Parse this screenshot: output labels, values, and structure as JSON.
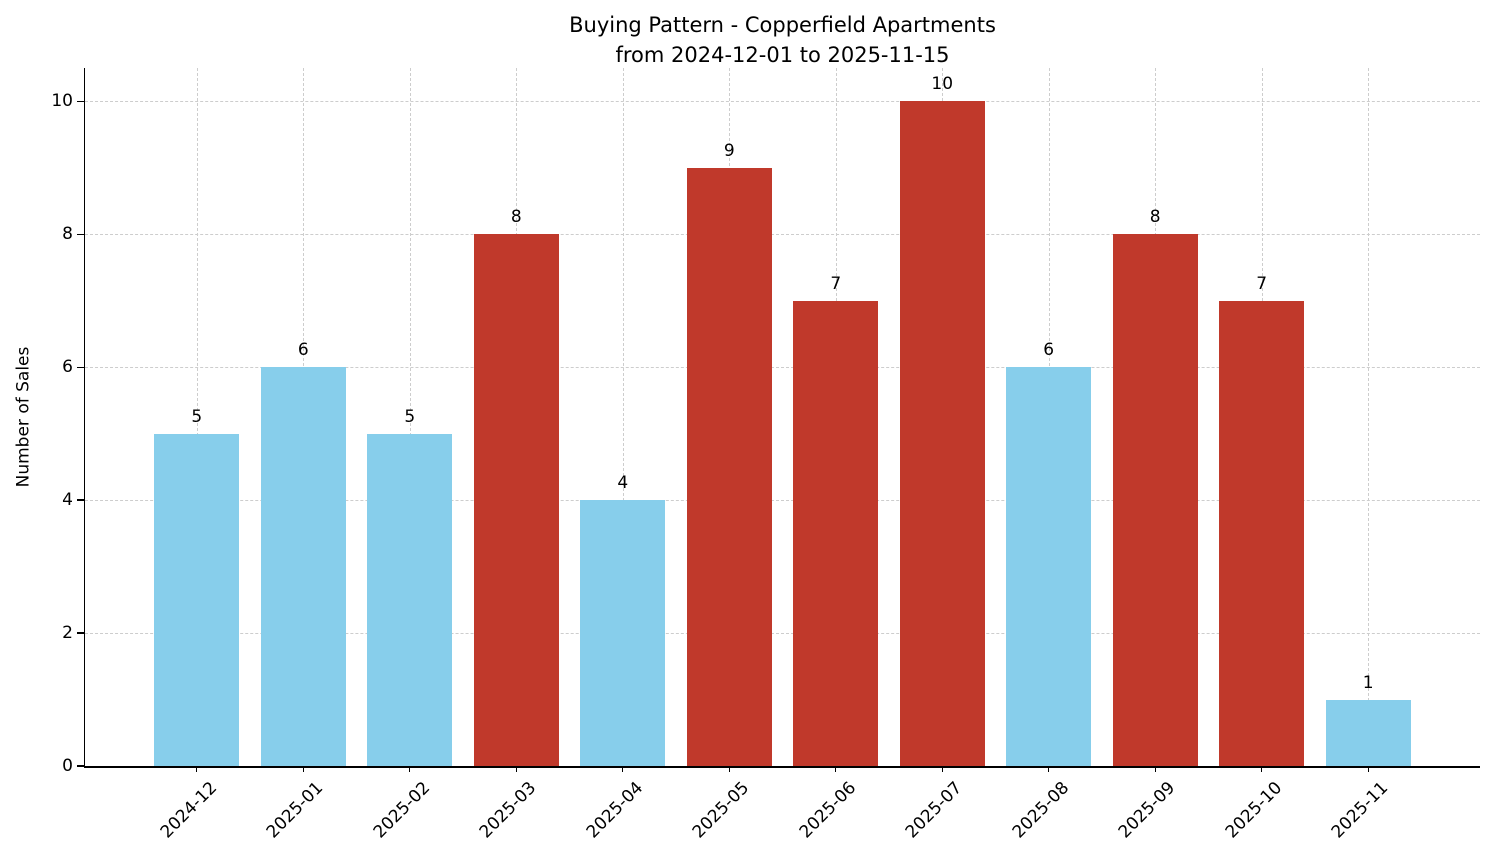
{
  "chart_data": {
    "type": "bar",
    "title": "Buying Pattern - Copperfield Apartments",
    "subtitle": "from 2024-12-01 to 2025-11-15",
    "xlabel": "",
    "ylabel": "Number of Sales",
    "categories": [
      "2024-12",
      "2025-01",
      "2025-02",
      "2025-03",
      "2025-04",
      "2025-05",
      "2025-06",
      "2025-07",
      "2025-08",
      "2025-09",
      "2025-10",
      "2025-11"
    ],
    "values": [
      5,
      6,
      5,
      8,
      4,
      9,
      7,
      10,
      6,
      8,
      7,
      1
    ],
    "bar_colors": [
      "#87CEEB",
      "#87CEEB",
      "#87CEEB",
      "#C0392B",
      "#87CEEB",
      "#C0392B",
      "#C0392B",
      "#C0392B",
      "#87CEEB",
      "#C0392B",
      "#C0392B",
      "#87CEEB"
    ],
    "colors": {
      "blue_bar": "#87CEEB",
      "red_bar": "#C0392B"
    },
    "yticks": [
      0,
      2,
      4,
      6,
      8,
      10
    ],
    "ylim": [
      0,
      10.5
    ],
    "grid": true,
    "grid_style": "dashed",
    "legend_position": "none",
    "value_labels_shown": true,
    "xtick_rotation_deg": 45
  }
}
